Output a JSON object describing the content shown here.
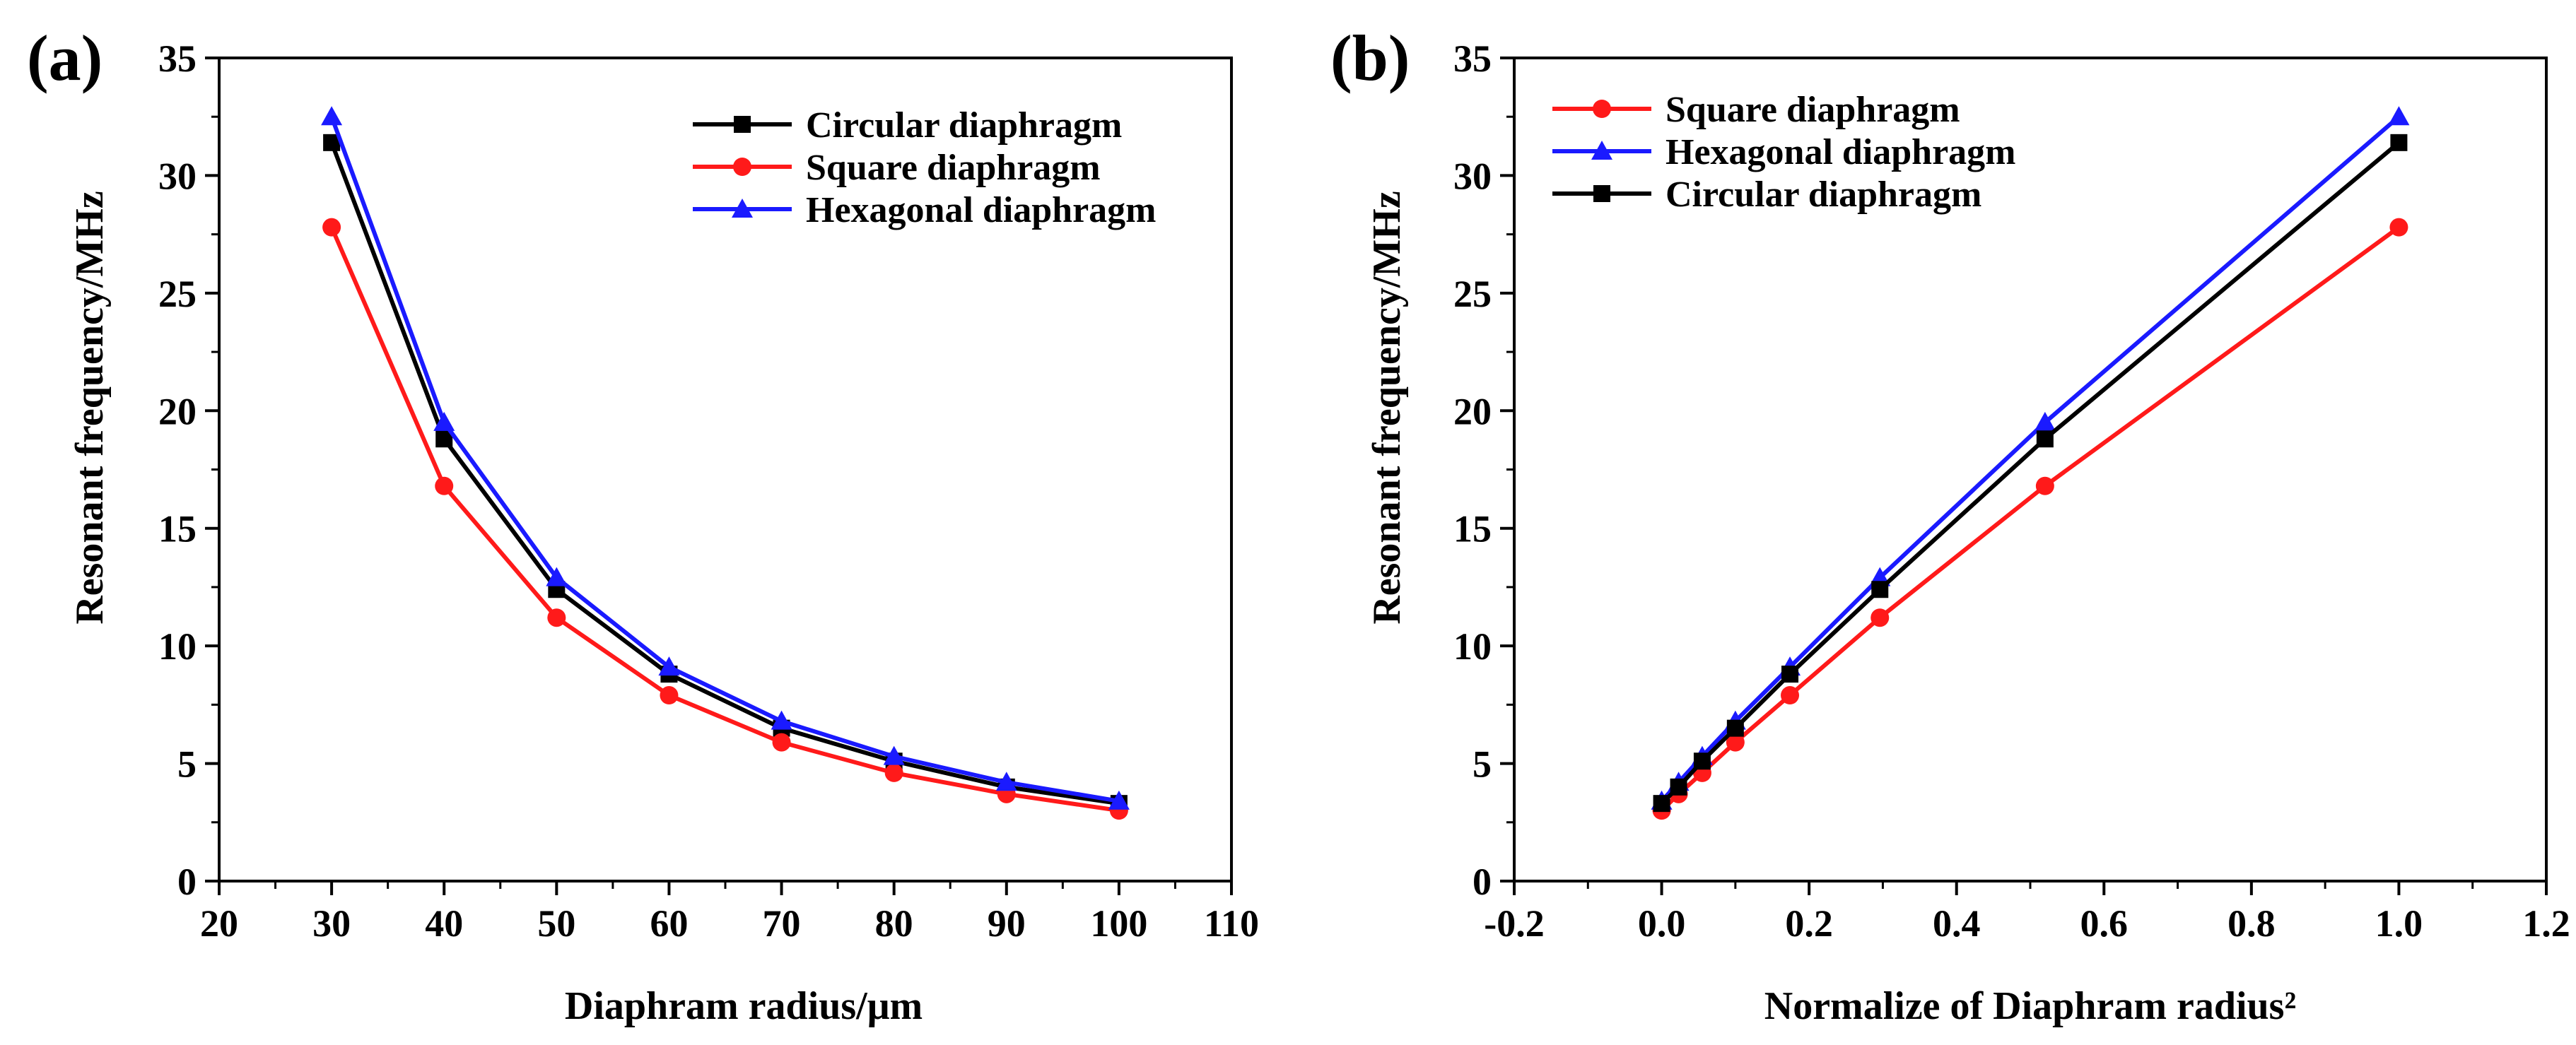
{
  "chart_data": [
    {
      "panel_label": "(a)",
      "type": "line",
      "xlabel": "Diaphram radius/μm",
      "ylabel": "Resonant frequency/MHz",
      "xlim": [
        20,
        110
      ],
      "ylim": [
        0,
        35
      ],
      "xticks": [
        20,
        30,
        40,
        50,
        60,
        70,
        80,
        90,
        100,
        110
      ],
      "yticks": [
        0,
        5,
        10,
        15,
        20,
        25,
        30,
        35
      ],
      "legend_position": "top-right",
      "x": [
        30,
        40,
        50,
        60,
        70,
        80,
        90,
        100
      ],
      "series": [
        {
          "name": "Circular diaphragm",
          "color": "#000000",
          "marker": "square",
          "values": [
            31.4,
            18.8,
            12.4,
            8.8,
            6.5,
            5.1,
            4.0,
            3.3
          ]
        },
        {
          "name": "Square diaphragm",
          "color": "#ff1a1a",
          "marker": "circle",
          "values": [
            27.8,
            16.8,
            11.2,
            7.9,
            5.9,
            4.6,
            3.7,
            3.0
          ]
        },
        {
          "name": "Hexagonal diaphragm",
          "color": "#1a1aff",
          "marker": "triangle",
          "values": [
            32.5,
            19.5,
            12.9,
            9.1,
            6.8,
            5.3,
            4.2,
            3.4
          ]
        }
      ]
    },
    {
      "panel_label": "(b)",
      "type": "line",
      "xlabel": "Normalize of Diaphram radius²",
      "ylabel": "Resonant frequency/MHz",
      "xlim": [
        -0.2,
        1.2
      ],
      "ylim": [
        0,
        35
      ],
      "xticks": [
        -0.2,
        0.0,
        0.2,
        0.4,
        0.6,
        0.8,
        1.0,
        1.2
      ],
      "xtick_labels": [
        "-0.2",
        "0.0",
        "0.2",
        "0.4",
        "0.6",
        "0.8",
        "1.0",
        "1.2"
      ],
      "yticks": [
        0,
        5,
        10,
        15,
        20,
        25,
        30,
        35
      ],
      "legend_position": "top-left",
      "x": [
        0.0,
        0.023,
        0.055,
        0.1,
        0.174,
        0.296,
        0.52,
        1.0
      ],
      "series": [
        {
          "name": "Square diaphragm",
          "color": "#ff1a1a",
          "marker": "circle",
          "values": [
            3.0,
            3.7,
            4.6,
            5.9,
            7.9,
            11.2,
            16.8,
            27.8
          ]
        },
        {
          "name": "Hexagonal diaphragm",
          "color": "#1a1aff",
          "marker": "triangle",
          "values": [
            3.4,
            4.2,
            5.3,
            6.8,
            9.1,
            12.9,
            19.5,
            32.5
          ]
        },
        {
          "name": "Circular diaphragm",
          "color": "#000000",
          "marker": "square",
          "values": [
            3.3,
            4.0,
            5.1,
            6.5,
            8.8,
            12.4,
            18.8,
            31.4
          ]
        }
      ]
    }
  ]
}
